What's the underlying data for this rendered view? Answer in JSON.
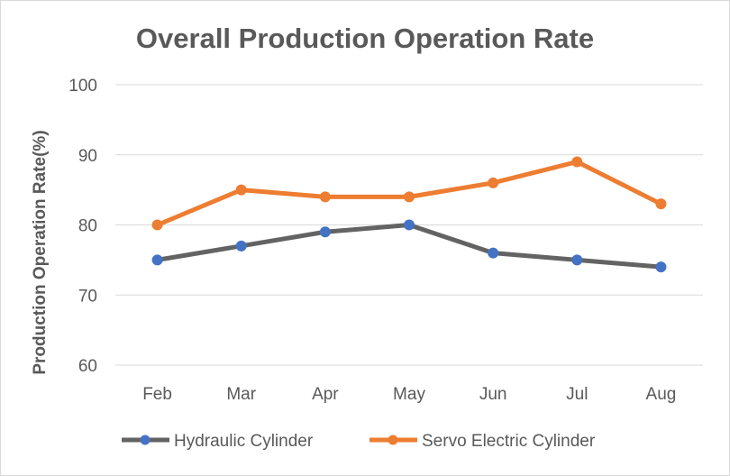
{
  "chart_data": {
    "type": "line",
    "title": "Overall Production Operation Rate",
    "xlabel": "",
    "ylabel": "Production Operation Rate(%)",
    "categories": [
      "Feb",
      "Mar",
      "Apr",
      "May",
      "Jun",
      "Jul",
      "Aug"
    ],
    "ylim": [
      60,
      100
    ],
    "yticks": [
      60,
      70,
      80,
      90,
      100
    ],
    "grid": true,
    "legend": "bottom",
    "series": [
      {
        "name": "Hydraulic Cylinder",
        "values": [
          75,
          77,
          79,
          80,
          76,
          75,
          74
        ],
        "line_color": "#636363",
        "marker_color": "#4472C4"
      },
      {
        "name": "Servo Electric Cylinder",
        "values": [
          80,
          85,
          84,
          84,
          86,
          89,
          83
        ],
        "line_color": "#ED7D31",
        "marker_color": "#ED7D31"
      }
    ]
  }
}
